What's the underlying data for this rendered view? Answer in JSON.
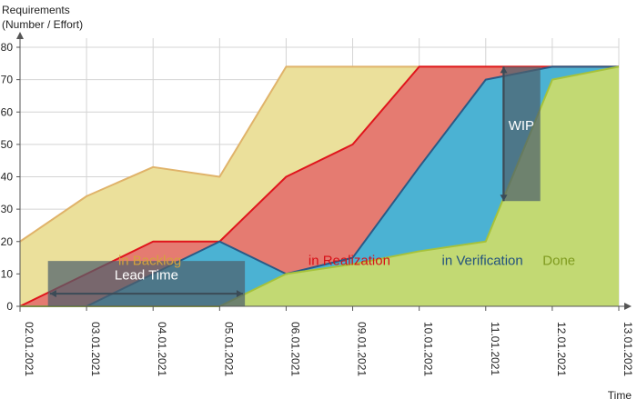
{
  "chart_data": {
    "type": "area",
    "title": "",
    "ylabel": "Requirements\n(Number / Effort)",
    "xlabel": "Time",
    "ylim": [
      0,
      80
    ],
    "yticks": [
      0,
      10,
      20,
      30,
      40,
      50,
      60,
      70,
      80
    ],
    "categories": [
      "02.01.2021",
      "03.01.2021",
      "04.01.2021",
      "05.01.2021",
      "06.01.2021",
      "09.01.2021",
      "10.01.2021",
      "11.01.2021",
      "12.01.2021",
      "13.01.2021"
    ],
    "series": [
      {
        "name": "in Backlog",
        "color": "#ebe09b",
        "line": "#e0b36a",
        "label_color": "#d4a23c",
        "values": [
          20,
          34,
          43,
          40,
          74,
          74,
          74,
          74,
          74,
          74
        ]
      },
      {
        "name": "in Realization",
        "color": "#e57b71",
        "line": "#e0151c",
        "label_color": "#d80f17",
        "values": [
          0,
          10,
          20,
          20,
          40,
          50,
          74,
          74,
          74,
          74
        ]
      },
      {
        "name": "in Verification",
        "color": "#4bb2d3",
        "line": "#2a5a86",
        "label_color": "#22517e",
        "values": [
          0,
          0,
          10,
          20,
          10,
          15,
          43,
          70,
          74,
          74
        ]
      },
      {
        "name": "Done",
        "color": "#c2d973",
        "line": "#a6c23a",
        "label_color": "#7f9a1f",
        "values": [
          0,
          0,
          0,
          0,
          10,
          13,
          17,
          20,
          70,
          74
        ]
      }
    ],
    "annotations": [
      {
        "text": "Lead Time",
        "type": "horizontal",
        "from_x": 0.45,
        "to_x": 3.35,
        "y": 3.9,
        "box_x0": 0.42,
        "box_x1": 3.38,
        "box_y0": 0,
        "box_y1": 14
      },
      {
        "text": "WIP",
        "type": "vertical",
        "x": 7.27,
        "from_y": 32.5,
        "to_y": 74,
        "box_x0": 7.25,
        "box_x1": 7.82,
        "box_y0": 32.5,
        "box_y1": 74
      }
    ]
  }
}
